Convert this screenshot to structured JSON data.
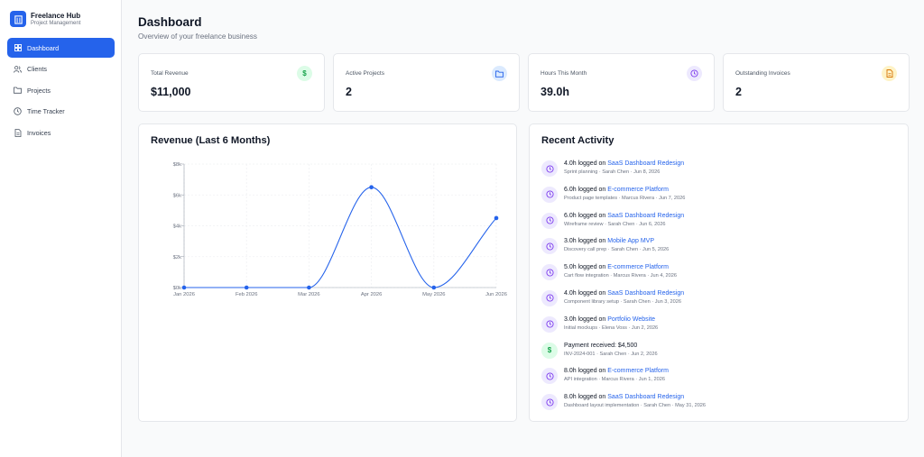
{
  "brand": {
    "title": "Freelance Hub",
    "subtitle": "Project Management",
    "color": "#2563eb"
  },
  "nav": [
    {
      "label": "Dashboard",
      "icon": "grid-icon",
      "active": true
    },
    {
      "label": "Clients",
      "icon": "users-icon",
      "active": false
    },
    {
      "label": "Projects",
      "icon": "folder-icon",
      "active": false
    },
    {
      "label": "Time Tracker",
      "icon": "clock-icon",
      "active": false
    },
    {
      "label": "Invoices",
      "icon": "file-icon",
      "active": false
    }
  ],
  "header": {
    "title": "Dashboard",
    "subtitle": "Overview of your freelance business"
  },
  "stats": [
    {
      "label": "Total Revenue",
      "value": "$11,000",
      "icon": "dollar-icon",
      "icon_bg": "#dcfce7",
      "icon_color": "#16a34a"
    },
    {
      "label": "Active Projects",
      "value": "2",
      "icon": "folder-icon",
      "icon_bg": "#dbeafe",
      "icon_color": "#2563eb"
    },
    {
      "label": "Hours This Month",
      "value": "39.0h",
      "icon": "clock-icon",
      "icon_bg": "#ede9fe",
      "icon_color": "#7c3aed"
    },
    {
      "label": "Outstanding Invoices",
      "value": "2",
      "icon": "file-icon",
      "icon_bg": "#fef3c7",
      "icon_color": "#d97706"
    }
  ],
  "revenue_panel": {
    "title": "Revenue (Last 6 Months)"
  },
  "chart_data": {
    "type": "line",
    "title": "Revenue (Last 6 Months)",
    "categories": [
      "Jan 2026",
      "Feb 2026",
      "Mar 2026",
      "Apr 2026",
      "May 2026",
      "Jun 2026"
    ],
    "values": [
      0,
      0,
      0,
      6500,
      0,
      4500
    ],
    "yticks": [
      "$0k",
      "$2k",
      "$4k",
      "$6k",
      "$8k"
    ],
    "ylim": [
      0,
      8000
    ],
    "xlabel": "",
    "ylabel": "",
    "color": "#2563eb",
    "grid": true
  },
  "activity_panel": {
    "title": "Recent Activity",
    "items": [
      {
        "kind": "time",
        "prefix": "4.0h logged on ",
        "link": "SaaS Dashboard Redesign",
        "detail": "Sprint planning · Sarah Chen · Jun 8, 2026"
      },
      {
        "kind": "time",
        "prefix": "6.0h logged on ",
        "link": "E-commerce Platform",
        "detail": "Product page templates · Marcus Rivera · Jun 7, 2026"
      },
      {
        "kind": "time",
        "prefix": "6.0h logged on ",
        "link": "SaaS Dashboard Redesign",
        "detail": "Wireframe review · Sarah Chen · Jun 6, 2026"
      },
      {
        "kind": "time",
        "prefix": "3.0h logged on ",
        "link": "Mobile App MVP",
        "detail": "Discovery call prep · Sarah Chen · Jun 5, 2026"
      },
      {
        "kind": "time",
        "prefix": "5.0h logged on ",
        "link": "E-commerce Platform",
        "detail": "Cart flow integration · Marcus Rivera · Jun 4, 2026"
      },
      {
        "kind": "time",
        "prefix": "4.0h logged on ",
        "link": "SaaS Dashboard Redesign",
        "detail": "Component library setup · Sarah Chen · Jun 3, 2026"
      },
      {
        "kind": "time",
        "prefix": "3.0h logged on ",
        "link": "Portfolio Website",
        "detail": "Initial mockups · Elena Voss · Jun 2, 2026"
      },
      {
        "kind": "payment",
        "prefix": "Payment received: $4,500",
        "link": "",
        "detail": "INV-2024-001 · Sarah Chen · Jun 2, 2026"
      },
      {
        "kind": "time",
        "prefix": "8.0h logged on ",
        "link": "E-commerce Platform",
        "detail": "API integration · Marcus Rivera · Jun 1, 2026"
      },
      {
        "kind": "time",
        "prefix": "8.0h logged on ",
        "link": "SaaS Dashboard Redesign",
        "detail": "Dashboard layout implementation · Sarah Chen · May 31, 2026"
      }
    ]
  }
}
